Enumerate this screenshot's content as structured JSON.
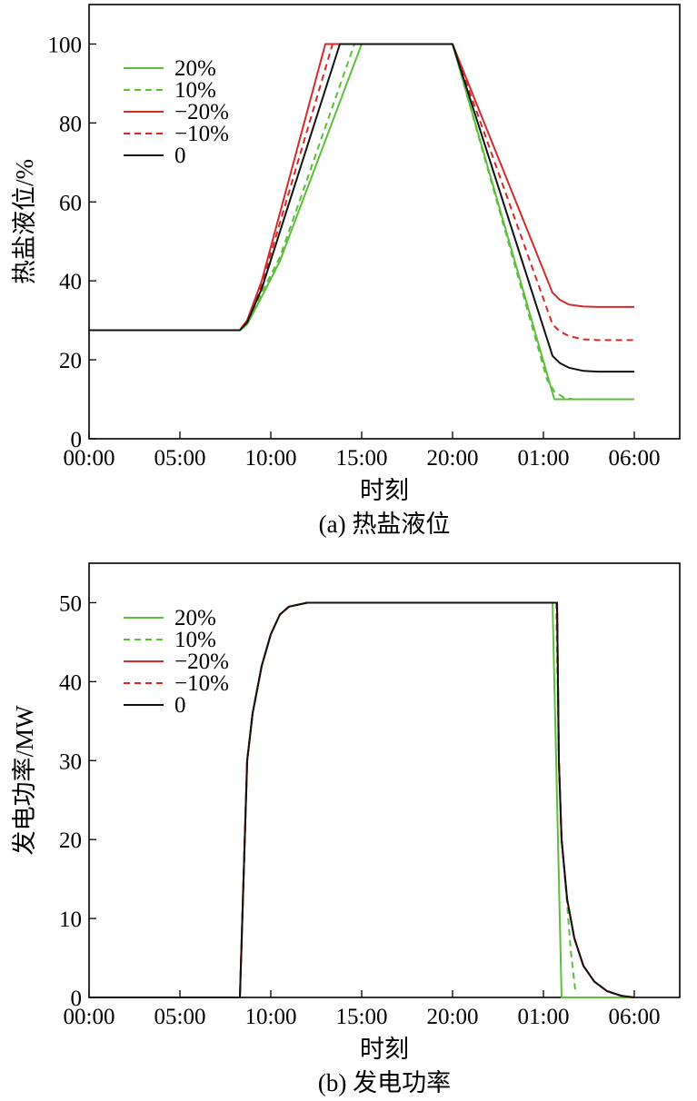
{
  "colors": {
    "green": "#5cbf3a",
    "red": "#d42a2a",
    "black": "#111111"
  },
  "chart_data": [
    {
      "type": "line",
      "caption": "(a) 热盐液位",
      "xlabel": "时刻",
      "ylabel": "热盐液位/%",
      "x_tick_labels": [
        "00:00",
        "05:00",
        "10:00",
        "15:00",
        "20:00",
        "01:00",
        "06:00"
      ],
      "x_tick_hours": [
        0,
        5,
        10,
        15,
        20,
        25,
        30
      ],
      "xlim": [
        0,
        32.5
      ],
      "ylim": [
        0,
        110
      ],
      "y_ticks": [
        0,
        20,
        40,
        60,
        80,
        100
      ],
      "legend_position": "top-left",
      "series": [
        {
          "name": "20%",
          "color": "#5cbf3a",
          "dash": "solid",
          "x": [
            0,
            8.3,
            8.7,
            9.5,
            10.5,
            15.0,
            20.0,
            25.6,
            30.0
          ],
          "y": [
            27.5,
            27.5,
            29,
            36,
            45,
            100,
            100,
            10,
            10
          ]
        },
        {
          "name": "10%",
          "color": "#5cbf3a",
          "dash": "dashed",
          "x": [
            0,
            8.3,
            8.7,
            9.5,
            10.5,
            14.6,
            20.0,
            25.2,
            25.6,
            26.1,
            26.6,
            30.0
          ],
          "y": [
            27.5,
            27.5,
            29,
            37,
            46,
            100,
            100,
            15,
            12,
            10.5,
            10,
            10
          ]
        },
        {
          "name": "−20%",
          "color": "#d42a2a",
          "dash": "solid",
          "x": [
            0,
            8.3,
            8.7,
            9.5,
            13.0,
            20.0,
            25.5,
            25.9,
            26.4,
            27.2,
            28.0,
            30.0
          ],
          "y": [
            27.5,
            27.5,
            30,
            40,
            100,
            100,
            37,
            35.2,
            34,
            33.5,
            33.4,
            33.4
          ]
        },
        {
          "name": "−10%",
          "color": "#d42a2a",
          "dash": "dashed",
          "x": [
            0,
            8.3,
            8.7,
            9.5,
            13.4,
            20.0,
            25.5,
            25.9,
            26.4,
            27.2,
            28.0,
            30.0
          ],
          "y": [
            27.5,
            27.5,
            30,
            39,
            100,
            100,
            29,
            27.2,
            26,
            25.2,
            25,
            25
          ]
        },
        {
          "name": "0",
          "color": "#111111",
          "dash": "solid",
          "x": [
            0,
            8.3,
            8.7,
            9.5,
            13.8,
            20.0,
            25.5,
            25.9,
            26.4,
            27.2,
            28.0,
            30.0
          ],
          "y": [
            27.5,
            27.5,
            29.5,
            38,
            100,
            100,
            21,
            19.2,
            18,
            17.2,
            17,
            17
          ]
        }
      ]
    },
    {
      "type": "line",
      "caption": "(b) 发电功率",
      "xlabel": "时刻",
      "ylabel": "发电功率/MW",
      "x_tick_labels": [
        "00:00",
        "05:00",
        "10:00",
        "15:00",
        "20:00",
        "01:00",
        "06:00"
      ],
      "x_tick_hours": [
        0,
        5,
        10,
        15,
        20,
        25,
        30
      ],
      "xlim": [
        0,
        32.5
      ],
      "ylim": [
        0,
        55
      ],
      "y_ticks": [
        0,
        10,
        20,
        30,
        40,
        50
      ],
      "legend_position": "top-left",
      "series": [
        {
          "name": "20%",
          "color": "#5cbf3a",
          "dash": "solid",
          "x": [
            0,
            8.3,
            8.7,
            9.0,
            9.5,
            10.0,
            10.5,
            11.0,
            12.0,
            13.0,
            25.5,
            26.0,
            30.0
          ],
          "y": [
            0,
            0,
            30,
            36,
            42,
            46,
            48.5,
            49.5,
            50,
            50,
            50,
            0,
            0
          ]
        },
        {
          "name": "10%",
          "color": "#5cbf3a",
          "dash": "dashed",
          "x": [
            0,
            8.3,
            8.7,
            9.0,
            9.5,
            10.0,
            10.5,
            11.0,
            12.0,
            13.0,
            25.7,
            25.85,
            26.0,
            26.3,
            26.5,
            26.75
          ],
          "y": [
            0,
            0,
            30,
            36,
            42,
            46,
            48.5,
            49.5,
            50,
            50,
            50,
            30,
            20,
            12,
            6,
            1
          ]
        },
        {
          "name": "−20%",
          "color": "#d42a2a",
          "dash": "solid",
          "x": [
            0,
            8.3,
            8.7,
            9.0,
            9.5,
            10.0,
            10.5,
            11.0,
            12.0,
            13.0,
            25.75,
            25.85,
            26.0,
            26.3,
            26.7,
            27.2,
            27.8,
            28.5,
            29.3,
            30.0
          ],
          "y": [
            0,
            0,
            30,
            36,
            42,
            46,
            48.5,
            49.5,
            50,
            50,
            50,
            30,
            20,
            12.5,
            7.5,
            4,
            2,
            0.8,
            0.2,
            0
          ]
        },
        {
          "name": "−10%",
          "color": "#d42a2a",
          "dash": "dashed",
          "x": [
            0,
            8.3,
            8.7,
            9.0,
            9.5,
            10.0,
            10.5,
            11.0,
            12.0,
            13.0,
            25.75,
            25.85,
            26.0,
            26.3,
            26.7,
            27.2,
            27.8,
            28.5,
            29.3,
            30.0
          ],
          "y": [
            0,
            0,
            30,
            36,
            42,
            46,
            48.5,
            49.5,
            50,
            50,
            50,
            30,
            20,
            12.5,
            7.5,
            4,
            2,
            0.8,
            0.2,
            0
          ]
        },
        {
          "name": "0",
          "color": "#111111",
          "dash": "solid",
          "x": [
            0,
            8.3,
            8.7,
            9.0,
            9.5,
            10.0,
            10.5,
            11.0,
            12.0,
            13.0,
            25.75,
            25.85,
            26.0,
            26.3,
            26.7,
            27.2,
            27.8,
            28.5,
            29.3,
            30.0
          ],
          "y": [
            0,
            0,
            30,
            36,
            42,
            46,
            48.5,
            49.5,
            50,
            50,
            50,
            30,
            20,
            12.5,
            7.5,
            4,
            2,
            0.8,
            0.2,
            0
          ]
        }
      ]
    }
  ]
}
